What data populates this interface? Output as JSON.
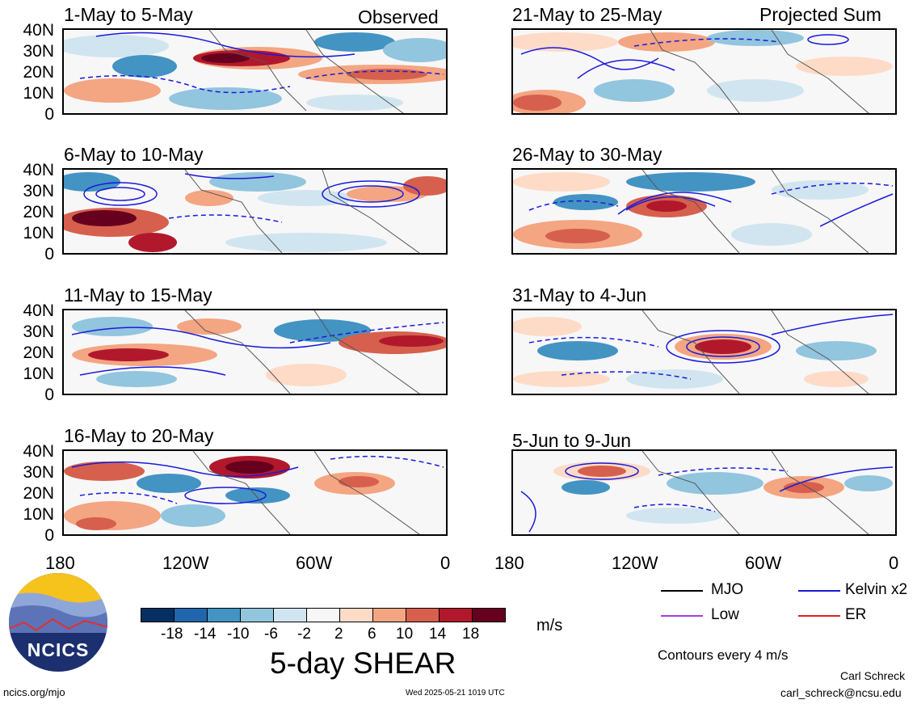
{
  "header": {
    "left_tag": "Observed",
    "right_tag": "Projected Sum"
  },
  "panels_left": [
    {
      "title": "1-May to 5-May"
    },
    {
      "title": "6-May to 10-May"
    },
    {
      "title": "11-May to 15-May"
    },
    {
      "title": "16-May to 20-May"
    }
  ],
  "panels_right": [
    {
      "title": "21-May to 25-May"
    },
    {
      "title": "26-May to 30-May"
    },
    {
      "title": "31-May to 4-Jun"
    },
    {
      "title": "5-Jun to 9-Jun"
    }
  ],
  "axes": {
    "y_ticks": [
      "40N",
      "30N",
      "20N",
      "10N",
      "0"
    ],
    "x_ticks": [
      "180",
      "120W",
      "60W",
      "0"
    ]
  },
  "colorbar": {
    "labels": [
      "-18",
      "-14",
      "-10",
      "-6",
      "-2",
      "2",
      "6",
      "10",
      "14",
      "18"
    ],
    "colors": [
      "#053061",
      "#2166ac",
      "#4393c3",
      "#92c5de",
      "#d1e5f0",
      "#f7f7f7",
      "#fddbc7",
      "#f4a582",
      "#d6604d",
      "#b2182b",
      "#67001f"
    ],
    "unit": "m/s"
  },
  "legend": {
    "mjo": {
      "label": "MJO",
      "color": "#000000"
    },
    "kelvin": {
      "label": "Kelvin x2",
      "color": "#1a1adc"
    },
    "low": {
      "label": "Low",
      "color": "#a040e0"
    },
    "er": {
      "label": "ER",
      "color": "#e02020"
    }
  },
  "contour_note": "Contours every 4 m/s",
  "main_title": "5-day SHEAR",
  "logo_text": "NCICS",
  "footer": {
    "left": "ncics.org/mjo",
    "center": "Wed 2025-05-21 1019 UTC",
    "author": "Carl Schreck",
    "email": "carl_schreck@ncsu.edu"
  }
}
